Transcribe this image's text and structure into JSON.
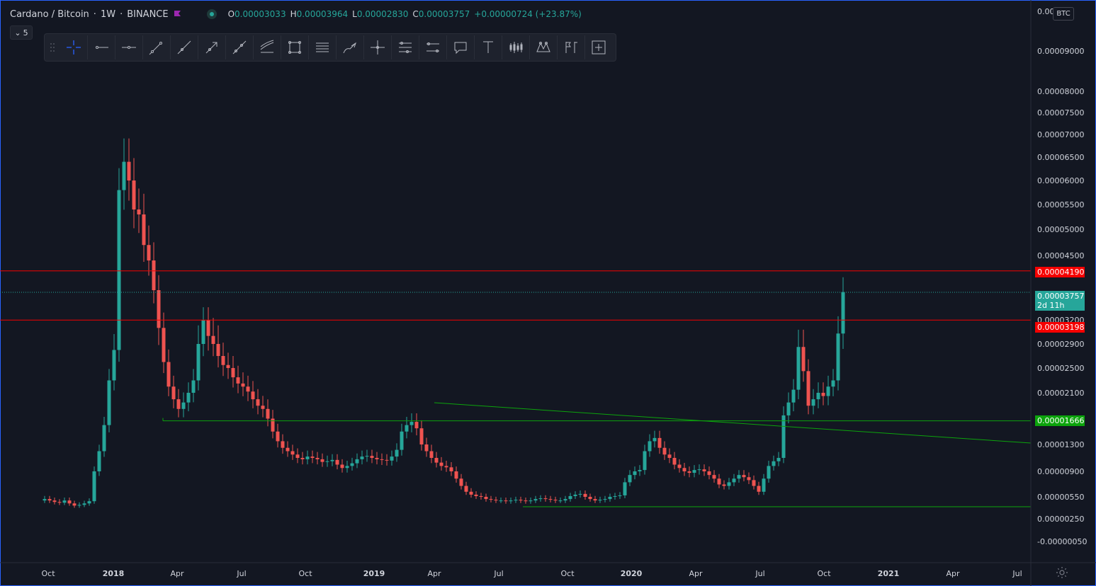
{
  "header": {
    "symbol": "Cardano / Bitcoin",
    "interval": "1W",
    "exchange": "BINANCE",
    "ohlc": {
      "o_label": "O",
      "o_value": "0.00003033",
      "h_label": "H",
      "h_value": "0.00003964",
      "l_label": "L",
      "l_value": "0.00002830",
      "c_label": "C",
      "c_value": "0.00003757",
      "change": "+0.00000724 (+23.87%)"
    },
    "status_color": "#26a69a",
    "flag_color": "#9c27b0"
  },
  "interval_badge": "5",
  "currency_badge": "BTC",
  "toolbar": {
    "icons": [
      "grip-icon",
      "crosshair-icon",
      "horizontal-ray-icon",
      "horizontal-line-icon",
      "trend-line-icon",
      "extended-line-icon",
      "arrow-icon",
      "ray-icon",
      "parallel-channel-icon",
      "rectangle-icon",
      "fib-retracement-icon",
      "brush-icon",
      "cross-line-icon",
      "ruler-icon",
      "price-range-icon",
      "callout-icon",
      "text-icon",
      "bars-pattern-icon",
      "xabcd-pattern-icon",
      "long-position-icon",
      "fit-screen-icon"
    ]
  },
  "colors": {
    "background": "#131722",
    "up": "#26a69a",
    "down": "#ef5350",
    "resistance": "#f50000",
    "support": "#0ca40c",
    "grid_text": "#d1d4dc"
  },
  "price_labels": {
    "resistance_upper": "0.00004190",
    "current": "0.00003757",
    "countdown": "2d 11h",
    "resistance_lower": "0.00003198",
    "support": "0.00001666"
  },
  "chart_data": {
    "type": "candlestick",
    "title": "Cardano / Bitcoin",
    "y_ticks": [
      "0.00009000",
      "0.00008000",
      "0.00007500",
      "0.00007000",
      "0.00006500",
      "0.00006000",
      "0.00005500",
      "0.00005000",
      "0.00004500",
      "0.00003200",
      "0.00002900",
      "0.00002500",
      "0.00002100",
      "0.00001300",
      "0.00000900",
      "0.00000550",
      "0.00000250",
      "-0.00000050"
    ],
    "x_ticks": [
      "Oct",
      "2018",
      "Apr",
      "Jul",
      "Oct",
      "2019",
      "Apr",
      "Jul",
      "Oct",
      "2020",
      "Apr",
      "Jul",
      "Oct",
      "2021",
      "Apr",
      "Jul"
    ],
    "x_range": [
      "2017-10-01",
      "2021-07-31"
    ],
    "y_range": [
      -5e-07,
      0.0001
    ],
    "y_scale": "log-ish",
    "ohlc_close_series": [
      5.2e-06,
      5e-06,
      4.8e-06,
      4.7e-06,
      5e-06,
      4.6e-06,
      4.3e-06,
      4.4e-06,
      4.6e-06,
      4.9e-06,
      9e-06,
      1.2e-05,
      1.6e-05,
      2.3e-05,
      2.8e-05,
      5.8e-05,
      6.4e-05,
      6e-05,
      5.4e-05,
      5.3e-05,
      4.7e-05,
      4.4e-05,
      3.8e-05,
      3.1e-05,
      2.6e-05,
      2.2e-05,
      2e-05,
      1.85e-05,
      1.95e-05,
      2.1e-05,
      2.3e-05,
      2.9e-05,
      3.2e-05,
      3e-05,
      2.9e-05,
      2.7e-05,
      2.55e-05,
      2.5e-05,
      2.35e-05,
      2.25e-05,
      2.2e-05,
      2.12e-05,
      2e-05,
      1.9e-05,
      1.85e-05,
      1.7e-05,
      1.5e-05,
      1.35e-05,
      1.25e-05,
      1.2e-05,
      1.15e-05,
      1.1e-05,
      1.08e-05,
      1.12e-05,
      1.1e-05,
      1.08e-05,
      1.04e-05,
      1.05e-05,
      1.07e-05,
      1e-05,
      9.5e-06,
      9.8e-06,
      1.02e-05,
      1.08e-05,
      1.12e-05,
      1.13e-05,
      1.1e-05,
      1.08e-05,
      1.07e-05,
      1.06e-05,
      1.12e-05,
      1.22e-05,
      1.5e-05,
      1.6e-05,
      1.65e-05,
      1.55e-05,
      1.3e-05,
      1.2e-05,
      1.1e-05,
      1.03e-05,
      9.8e-06,
      9.6e-06,
      9e-06,
      8e-06,
      7e-06,
      6.2e-06,
      5.8e-06,
      5.6e-06,
      5.5e-06,
      5.2e-06,
      5.1e-06,
      5e-06,
      5e-06,
      4.9e-06,
      5e-06,
      5.1e-06,
      5e-06,
      4.9e-06,
      5e-06,
      5.2e-06,
      5.3e-06,
      5.2e-06,
      5.1e-06,
      5e-06,
      5e-06,
      5.2e-06,
      5.6e-06,
      5.8e-06,
      5.9e-06,
      5.5e-06,
      5.2e-06,
      5e-06,
      5.1e-06,
      5.2e-06,
      5.5e-06,
      5.6e-06,
      5.7e-06,
      7.5e-06,
      8.5e-06,
      9e-06,
      9.2e-06,
      1.2e-05,
      1.35e-05,
      1.4e-05,
      1.25e-05,
      1.15e-05,
      1.1e-05,
      1e-05,
      9.5e-06,
      9e-06,
      8.8e-06,
      9.2e-06,
      9.3e-06,
      9e-06,
      8.5e-06,
      8e-06,
      7.2e-06,
      7e-06,
      7.5e-06,
      8e-06,
      8.5e-06,
      8.2e-06,
      7.8e-06,
      7e-06,
      6.2e-06,
      8e-06,
      9.8e-06,
      1.05e-05,
      1.1e-05,
      1.75e-05,
      1.95e-05,
      2.15e-05,
      2.85e-05,
      2.45e-05,
      1.9e-05,
      2e-05,
      2.1e-05,
      2.05e-05,
      2.2e-05,
      2.3e-05,
      3.03e-05,
      3.76e-05
    ]
  }
}
